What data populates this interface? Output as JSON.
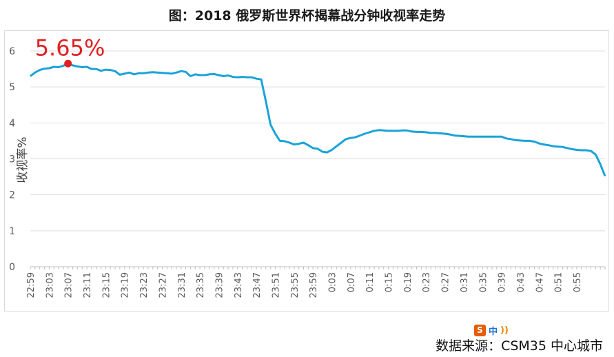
{
  "title": "图：2018 俄罗斯世界杯揭幕战分钟收视率走势",
  "source": "数据来源：CSM35 中心城市",
  "watermark": {
    "logo": "S",
    "lang": "中",
    "rss": "))"
  },
  "colors": {
    "line": "#1aa3d9",
    "peak": "#e02020",
    "grid": "#dedede",
    "axis_text": "#595959"
  },
  "chart_data": {
    "type": "line",
    "title": "图：2018 俄罗斯世界杯揭幕战分钟收视率走势",
    "ylabel": "收视率%",
    "xlabel": "",
    "ylim": [
      0,
      6
    ],
    "yticks": [
      0,
      1,
      2,
      3,
      4,
      5,
      6
    ],
    "grid": true,
    "legend": "none",
    "xticklabels": [
      "22:59",
      "23:03",
      "23:07",
      "23:11",
      "23:15",
      "23:19",
      "23:23",
      "23:27",
      "23:31",
      "23:35",
      "23:39",
      "23:43",
      "23:47",
      "23:51",
      "23:55",
      "23:59",
      "0:03",
      "0:07",
      "0:11",
      "0:15",
      "0:19",
      "0:23",
      "0:27",
      "0:31",
      "0:35",
      "0:39",
      "0:43",
      "0:47",
      "0:51",
      "0:55"
    ],
    "annotation": {
      "text": "5.65%",
      "index": 8,
      "value": 5.65
    },
    "series": [
      {
        "values": [
          5.3,
          5.4,
          5.47,
          5.51,
          5.52,
          5.56,
          5.55,
          5.59,
          5.65,
          5.6,
          5.57,
          5.55,
          5.56,
          5.5,
          5.5,
          5.45,
          5.48,
          5.47,
          5.44,
          5.34,
          5.37,
          5.4,
          5.35,
          5.38,
          5.38,
          5.4,
          5.41,
          5.4,
          5.39,
          5.38,
          5.37,
          5.4,
          5.44,
          5.42,
          5.3,
          5.35,
          5.33,
          5.33,
          5.35,
          5.36,
          5.33,
          5.3,
          5.32,
          5.28,
          5.27,
          5.28,
          5.27,
          5.27,
          5.23,
          5.21,
          4.6,
          3.95,
          3.7,
          3.5,
          3.49,
          3.45,
          3.4,
          3.42,
          3.45,
          3.38,
          3.3,
          3.28,
          3.2,
          3.18,
          3.25,
          3.35,
          3.45,
          3.55,
          3.58,
          3.6,
          3.65,
          3.7,
          3.74,
          3.78,
          3.8,
          3.79,
          3.78,
          3.78,
          3.78,
          3.79,
          3.79,
          3.76,
          3.75,
          3.75,
          3.74,
          3.72,
          3.72,
          3.71,
          3.7,
          3.68,
          3.65,
          3.64,
          3.63,
          3.62,
          3.62,
          3.62,
          3.62,
          3.62,
          3.62,
          3.62,
          3.62,
          3.57,
          3.55,
          3.52,
          3.51,
          3.5,
          3.5,
          3.48,
          3.43,
          3.4,
          3.38,
          3.35,
          3.34,
          3.33,
          3.3,
          3.27,
          3.25,
          3.24,
          3.24,
          3.22,
          3.12,
          2.85,
          2.52
        ]
      }
    ]
  }
}
